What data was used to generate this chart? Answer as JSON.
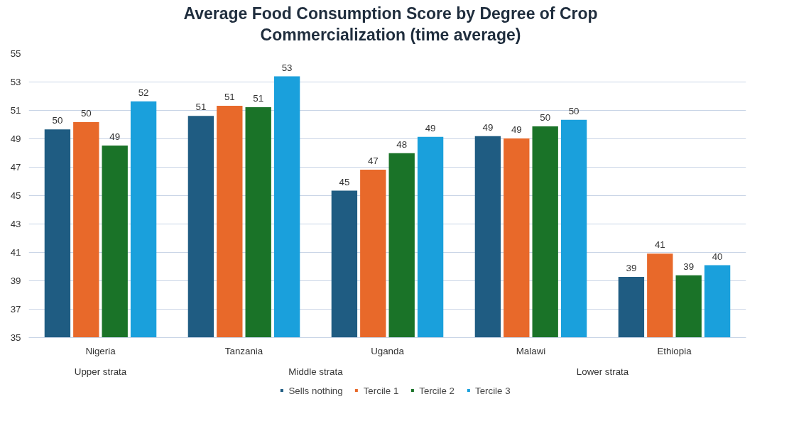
{
  "chart_data": {
    "type": "bar",
    "title": "Average Food Consumption Score by Degree of Crop\nCommercialization (time average)",
    "categories": [
      "Nigeria",
      "Tanzania",
      "Uganda",
      "Malawi",
      "Ethiopia"
    ],
    "series": [
      {
        "name": "Sells nothing",
        "color": "#1f5c82",
        "values": [
          49.66,
          50.61,
          45.35,
          49.19,
          39.28
        ],
        "value_labels": [
          "50",
          "51",
          "45",
          "49",
          "39"
        ]
      },
      {
        "name": "Tercile 1",
        "color": "#e8692a",
        "values": [
          50.17,
          51.32,
          46.82,
          49.03,
          40.91
        ],
        "value_labels": [
          "50",
          "51",
          "47",
          "49",
          "41"
        ]
      },
      {
        "name": "Tercile 2",
        "color": "#1a7328",
        "values": [
          48.52,
          51.22,
          47.99,
          49.87,
          39.39
        ],
        "value_labels": [
          "49",
          "51",
          "48",
          "50",
          "39"
        ]
      },
      {
        "name": "Tercile 3",
        "color": "#1aa0dc",
        "values": [
          51.64,
          53.4,
          49.14,
          50.34,
          40.1
        ],
        "value_labels": [
          "52",
          "53",
          "49",
          "50",
          "40"
        ]
      }
    ],
    "annotations": [
      "Upper strata",
      "Middle strata",
      "Lower strata"
    ],
    "ylim": [
      35,
      55
    ],
    "yticks": [
      35,
      37,
      39,
      41,
      43,
      45,
      47,
      49,
      51,
      53,
      55
    ],
    "grid": "y",
    "legend": "bottom"
  }
}
